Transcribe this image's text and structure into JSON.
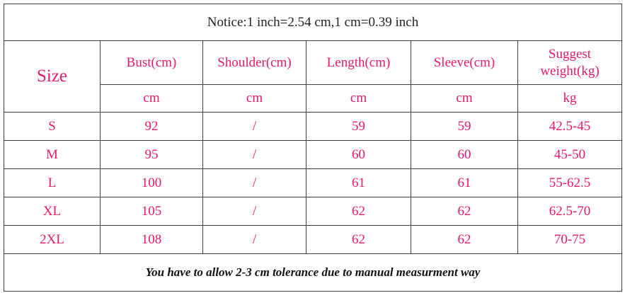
{
  "notice": "Notice:1 inch=2.54 cm,1 cm=0.39 inch",
  "header": {
    "size": "Size",
    "columns": [
      "Bust(cm)",
      "Shoulder(cm)",
      "Length(cm)",
      "Sleeve(cm)",
      "Suggest weight(kg)"
    ],
    "units": [
      "cm",
      "cm",
      "cm",
      "cm",
      "kg"
    ]
  },
  "rows": [
    {
      "size": "S",
      "bust": "92",
      "shoulder": "/",
      "length": "59",
      "sleeve": "59",
      "weight": "42.5-45"
    },
    {
      "size": "M",
      "bust": "95",
      "shoulder": "/",
      "length": "60",
      "sleeve": "60",
      "weight": "45-50"
    },
    {
      "size": "L",
      "bust": "100",
      "shoulder": "/",
      "length": "61",
      "sleeve": "61",
      "weight": "55-62.5"
    },
    {
      "size": "XL",
      "bust": "105",
      "shoulder": "/",
      "length": "62",
      "sleeve": "62",
      "weight": "62.5-70"
    },
    {
      "size": "2XL",
      "bust": "108",
      "shoulder": "/",
      "length": "62",
      "sleeve": "62",
      "weight": "70-75"
    }
  ],
  "footer": "You have to allow 2-3 cm tolerance due to manual measurment way",
  "colors": {
    "accent_text": "#e3186f",
    "border": "#3f3f3f",
    "notice_text": "#222222"
  }
}
